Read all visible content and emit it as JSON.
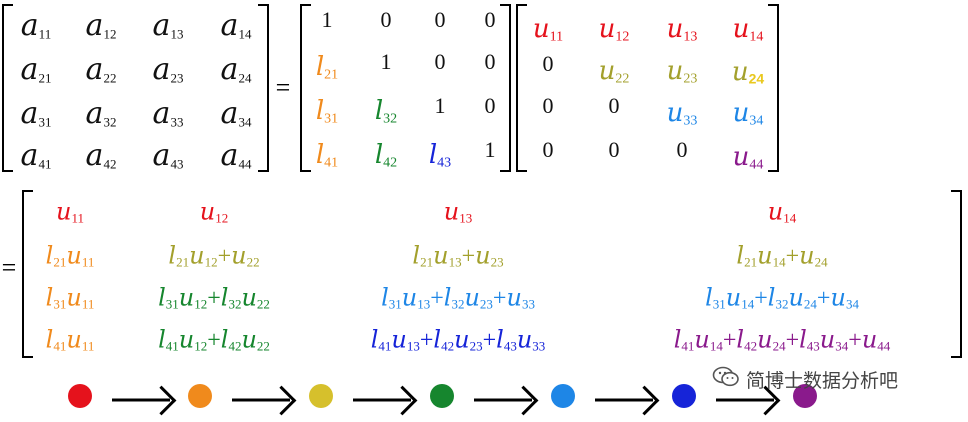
{
  "colors": {
    "black": "#111111",
    "red": "#e5121c",
    "orange": "#f08a1c",
    "olive": "#a3a02c",
    "yellow": "#e9c81e",
    "green": "#16862e",
    "sky": "#1e86e6",
    "blue": "#1624d8",
    "purple": "#8a1a8c"
  },
  "A": {
    "letter": "a",
    "entries": [
      [
        "11",
        "12",
        "13",
        "14"
      ],
      [
        "21",
        "22",
        "23",
        "24"
      ],
      [
        "31",
        "32",
        "33",
        "34"
      ],
      [
        "41",
        "42",
        "43",
        "44"
      ]
    ]
  },
  "L": {
    "letter": "l",
    "one": "1",
    "zero": "0",
    "sub21": "21",
    "sub31": "31",
    "sub32": "32",
    "sub41": "41",
    "sub42": "42",
    "sub43": "43"
  },
  "U": {
    "letter": "u",
    "zero": "0",
    "subs": [
      "11",
      "12",
      "13",
      "14",
      "22",
      "23",
      "24",
      "33",
      "34",
      "44"
    ]
  },
  "eq": "=",
  "plus": "+",
  "flow_dots": [
    "red",
    "orange",
    "yellow",
    "green",
    "sky",
    "blue",
    "purple"
  ],
  "watermark": {
    "text": "简博士数据分析吧",
    "icon": "wechat-icon"
  }
}
